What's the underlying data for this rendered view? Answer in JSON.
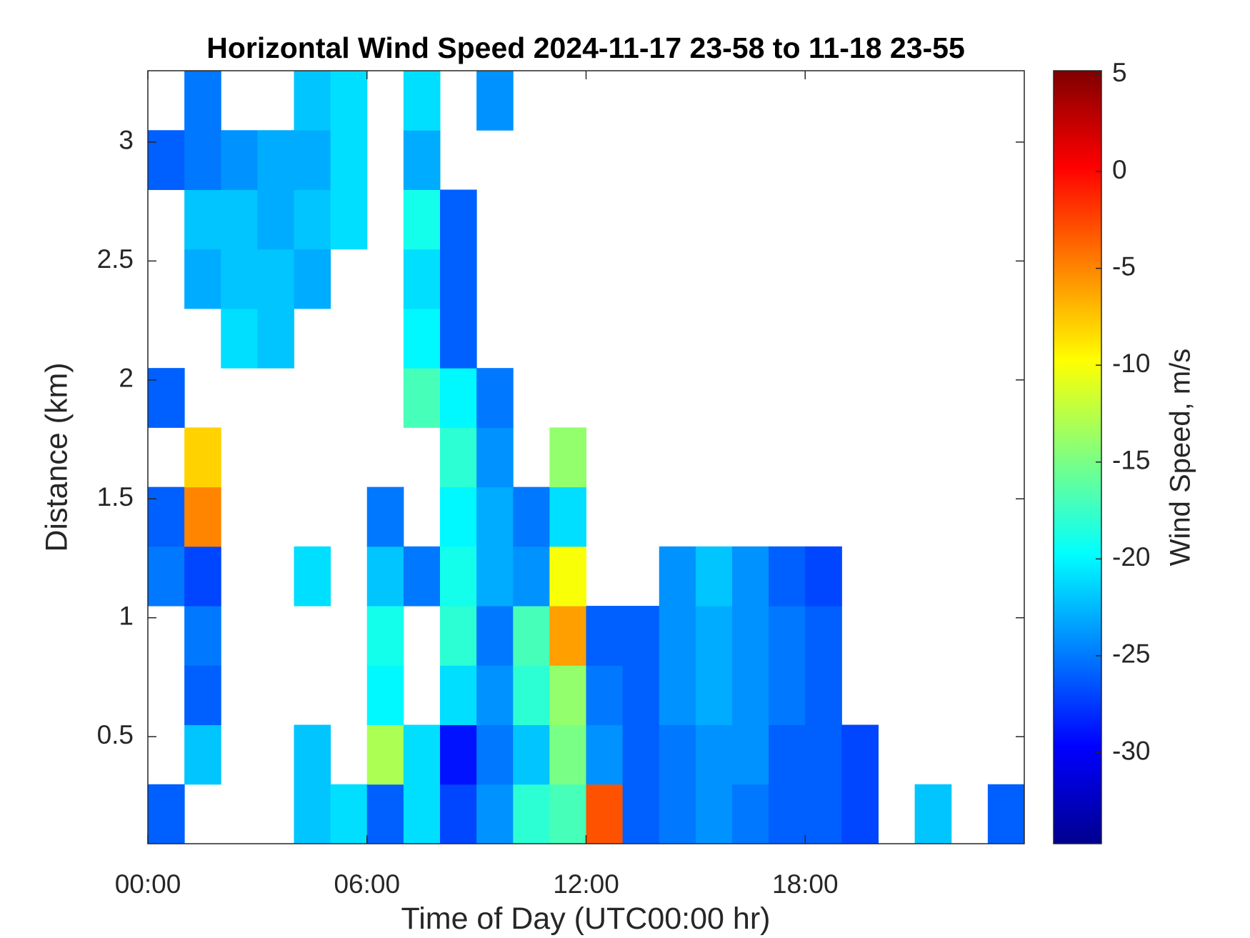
{
  "chart_data": {
    "type": "heatmap",
    "title": "Horizontal Wind Speed 2024-11-17 23-58 to 11-18 23-55",
    "x_label": "Time of Day (UTC00:00 hr)",
    "y_label": "Distance (km)",
    "colorbar_label": "Wind Speed, m/s",
    "x": [
      0,
      1,
      2,
      3,
      4,
      5,
      6,
      7,
      8,
      9,
      10,
      11,
      12,
      13,
      14,
      15,
      16,
      17,
      18,
      19,
      20,
      21,
      22,
      23,
      24
    ],
    "y": [
      0.05,
      0.3,
      0.55,
      0.8,
      1.05,
      1.3,
      1.55,
      1.8,
      2.05,
      2.3,
      2.55,
      2.8,
      3.05,
      3.3
    ],
    "values": [
      [
        -26,
        null,
        null,
        null,
        -22,
        -21,
        -26,
        -21,
        -27,
        -24,
        -18,
        -17,
        -3,
        -26,
        -25,
        -24,
        -25,
        -26,
        -26,
        -27,
        null,
        -22,
        null,
        -26
      ],
      [
        null,
        -22,
        null,
        null,
        -22,
        null,
        -13,
        -21,
        -29,
        -25,
        -22,
        -15,
        -24,
        -26,
        -25,
        -24,
        -24,
        -26,
        -26,
        -27,
        null,
        null,
        null,
        null
      ],
      [
        null,
        -26,
        null,
        null,
        null,
        null,
        -20,
        null,
        -21,
        -24,
        -18,
        -14,
        -25,
        -26,
        -24,
        -23,
        -24,
        -25,
        -26,
        null,
        null,
        null,
        null,
        null
      ],
      [
        null,
        -25,
        null,
        null,
        null,
        null,
        -19,
        null,
        -18,
        -25,
        -17,
        -6,
        -26,
        -26,
        -24,
        -23,
        -24,
        -25,
        -26,
        null,
        null,
        null,
        null,
        null
      ],
      [
        -25,
        -27,
        null,
        null,
        -21,
        null,
        -22,
        -25,
        -19,
        -23,
        -24,
        -10,
        null,
        null,
        -24,
        -22,
        -24,
        -26,
        -27,
        null,
        null,
        null,
        null,
        null
      ],
      [
        -26,
        -5,
        null,
        null,
        null,
        null,
        -25,
        null,
        -20,
        -23,
        -25,
        -21,
        null,
        null,
        null,
        null,
        null,
        null,
        null,
        null,
        null,
        null,
        null,
        null
      ],
      [
        null,
        -8,
        null,
        null,
        null,
        null,
        null,
        null,
        -18,
        -24,
        null,
        -14,
        null,
        null,
        null,
        null,
        null,
        null,
        null,
        null,
        null,
        null,
        null,
        null
      ],
      [
        -26,
        null,
        null,
        null,
        null,
        null,
        null,
        -17,
        -20,
        -25,
        null,
        null,
        null,
        null,
        null,
        null,
        null,
        null,
        null,
        null,
        null,
        null,
        null,
        null
      ],
      [
        null,
        null,
        -21,
        -22,
        null,
        null,
        null,
        -20,
        -26,
        null,
        null,
        null,
        null,
        null,
        null,
        null,
        null,
        null,
        null,
        null,
        null,
        null,
        null,
        null
      ],
      [
        null,
        -23,
        -22,
        -22,
        -23,
        null,
        null,
        -21,
        -26,
        null,
        null,
        null,
        null,
        null,
        null,
        null,
        null,
        null,
        null,
        null,
        null,
        null,
        null,
        null
      ],
      [
        null,
        -22,
        -22,
        -23,
        -22,
        -21,
        null,
        -19,
        -26,
        null,
        null,
        null,
        null,
        null,
        null,
        null,
        null,
        null,
        null,
        null,
        null,
        null,
        null,
        null
      ],
      [
        -26,
        -25,
        -24,
        -23,
        -23,
        -21,
        null,
        -23,
        null,
        null,
        null,
        null,
        null,
        null,
        null,
        null,
        null,
        null,
        null,
        null,
        null,
        null,
        null,
        null
      ],
      [
        null,
        -25,
        null,
        null,
        -22,
        -21,
        null,
        -21,
        null,
        -24,
        null,
        null,
        null,
        null,
        null,
        null,
        null,
        null,
        null,
        null,
        null,
        null,
        null,
        null
      ]
    ],
    "xlim": [
      0,
      24
    ],
    "xticks": [
      {
        "value": 0,
        "label": "00:00"
      },
      {
        "value": 6,
        "label": "06:00"
      },
      {
        "value": 12,
        "label": "12:00"
      },
      {
        "value": 18,
        "label": "18:00"
      }
    ],
    "ylim": [
      0.05,
      3.3
    ],
    "yticks": [
      0.5,
      1,
      1.5,
      2,
      2.5,
      3
    ],
    "clim": [
      -34.7,
      5.2
    ],
    "cticks": [
      -30,
      -25,
      -20,
      -15,
      -10,
      -5,
      0,
      5
    ],
    "colormap": [
      "#00008f",
      "#0000ff",
      "#00ffff",
      "#ffff00",
      "#ff0000",
      "#800000"
    ]
  }
}
